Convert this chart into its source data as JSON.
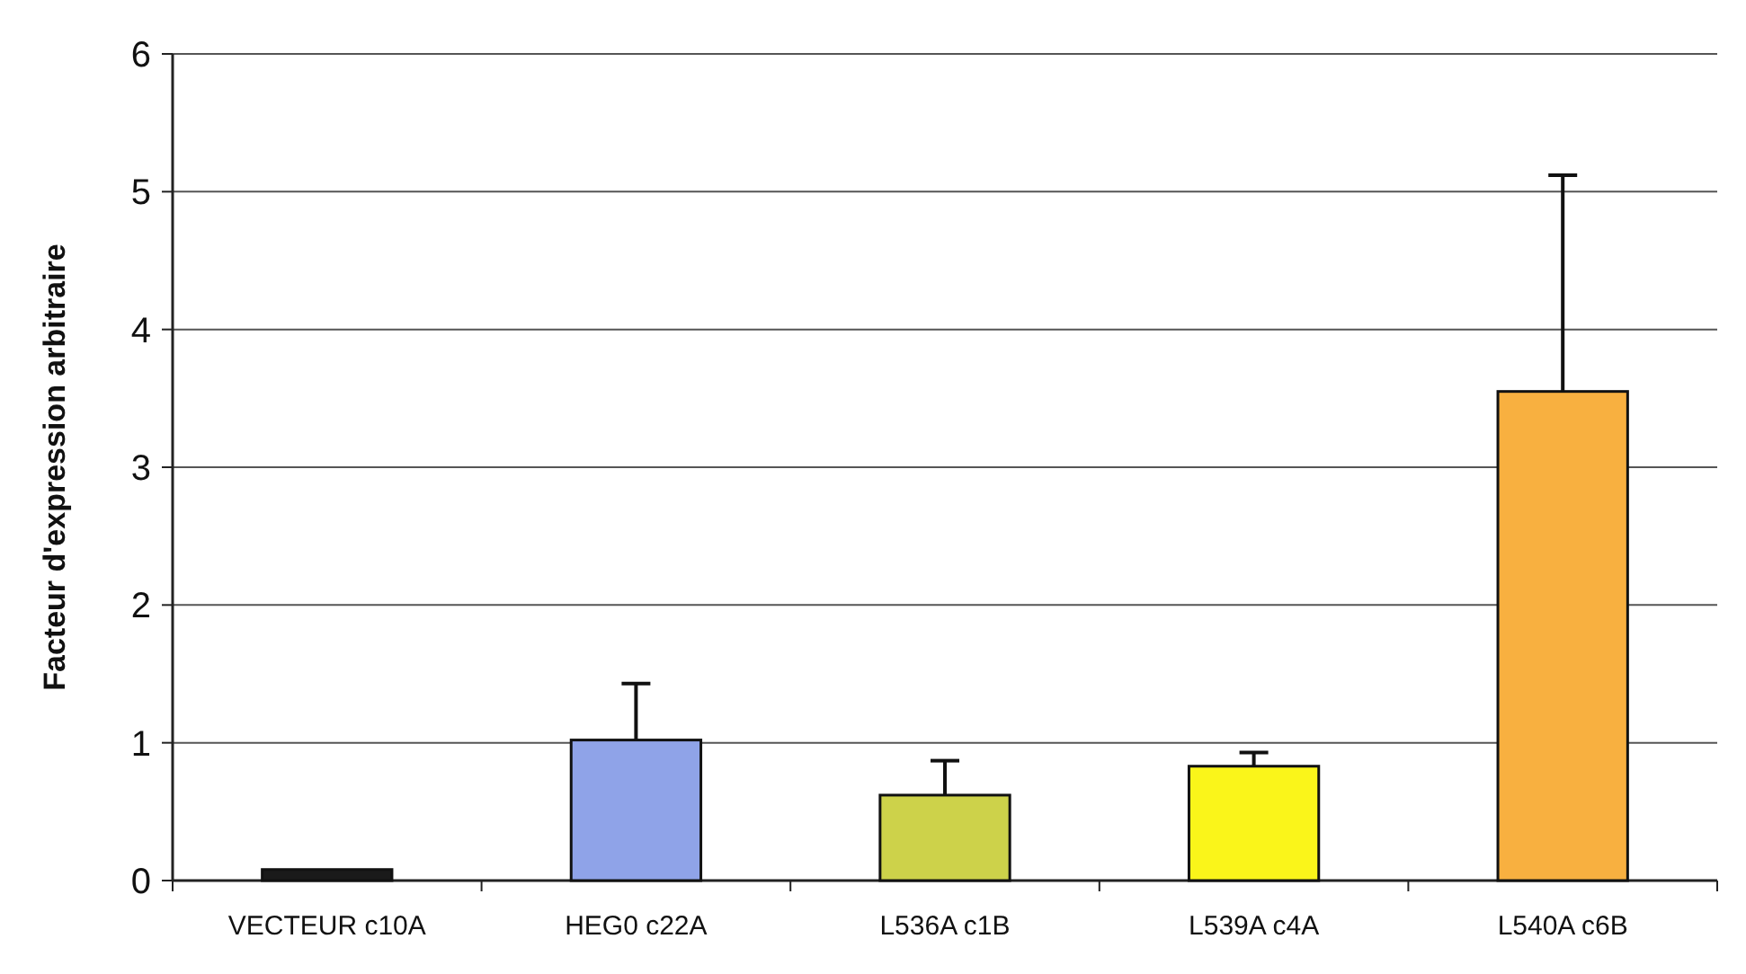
{
  "chart_data": {
    "type": "bar",
    "ylabel": "Facteur d'expression arbitraire",
    "categories": [
      "VECTEUR c10A",
      "HEG0 c22A",
      "L536A c1B",
      "L539A c4A",
      "L540A c6B"
    ],
    "values": [
      0.08,
      1.02,
      0.62,
      0.83,
      3.55
    ],
    "errors": [
      null,
      0.41,
      0.25,
      0.1,
      1.57
    ],
    "colors": [
      "#1a1a1a",
      "#8fa3e8",
      "#cdd24a",
      "#faf51a",
      "#f8b040"
    ],
    "ylim": [
      0,
      6
    ],
    "yticks": [
      0,
      1,
      2,
      3,
      4,
      5,
      6
    ],
    "grid": "y"
  }
}
